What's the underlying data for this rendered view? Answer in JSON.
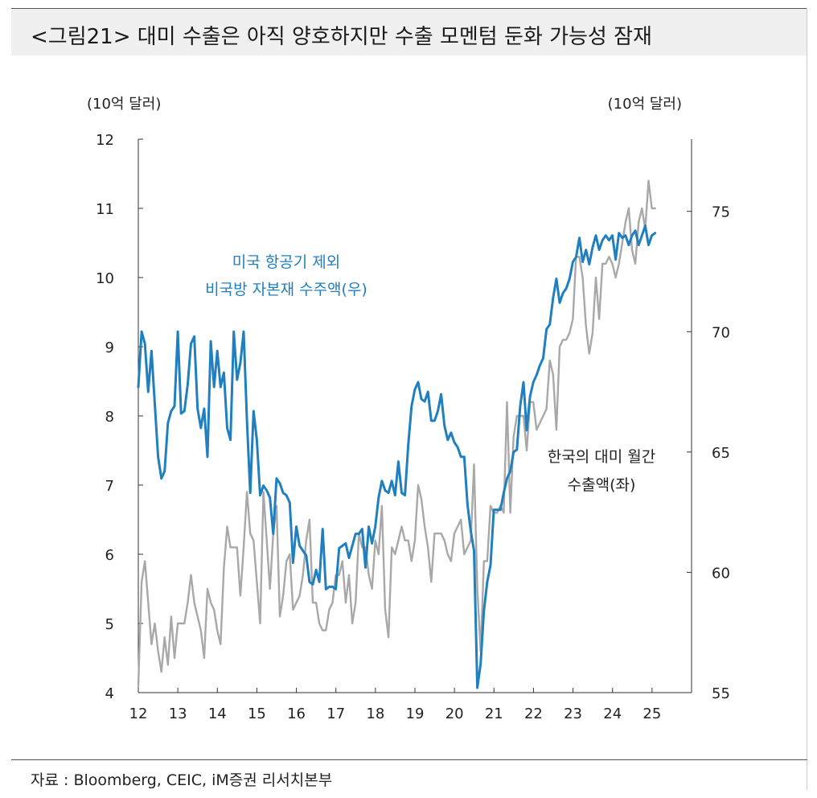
{
  "title": "<그림21> 대미 수출은 아직 양호하지만 수출 모멘텀 둔화 가능성 잠재",
  "source": "자료 : Bloomberg, CEIC, iM증권 리서치본부",
  "colors": {
    "left_series": "#a8a8a8",
    "right_series": "#1f7fbf",
    "axis": "#333333"
  },
  "chart_data": {
    "type": "line",
    "title": "<그림21> 대미 수출은 아직 양호하지만 수출 모멘텀 둔화 가능성 잠재",
    "x_ticks": [
      "12",
      "13",
      "14",
      "15",
      "16",
      "17",
      "18",
      "19",
      "20",
      "21",
      "22",
      "23",
      "24",
      "25"
    ],
    "x_range": [
      2012.0,
      2026.0
    ],
    "y_left": {
      "label": "(10억 달러)",
      "range": [
        4,
        12
      ],
      "ticks": [
        "4",
        "5",
        "6",
        "7",
        "8",
        "9",
        "10",
        "11",
        "12"
      ]
    },
    "y_right": {
      "label": "(10억 달러)",
      "range": [
        55,
        78
      ],
      "ticks": [
        "55",
        "60",
        "65",
        "70",
        "75"
      ]
    },
    "annotations": {
      "blue_line1": "미국 항공기 제외",
      "blue_line2": "비국방 자본재 수주액(우)",
      "gray_line1": "한국의 대미 월간",
      "gray_line2": "수출액(좌)"
    },
    "series": [
      {
        "name": "한국의 대미 월간 수출액(좌)",
        "axis": "left",
        "x_start": 2012.0,
        "x_step": 0.0833,
        "values": [
          4.1,
          5.6,
          5.9,
          5.3,
          4.7,
          5.0,
          4.6,
          4.3,
          4.8,
          4.4,
          5.1,
          4.5,
          5.0,
          5.0,
          5.0,
          5.3,
          5.7,
          5.3,
          5.1,
          4.9,
          4.5,
          5.5,
          5.3,
          5.2,
          4.9,
          4.7,
          5.8,
          6.4,
          6.1,
          6.1,
          6.1,
          5.4,
          6.1,
          6.9,
          6.3,
          6.2,
          5.6,
          5.0,
          6.9,
          6.2,
          5.5,
          6.3,
          6.7,
          5.1,
          5.4,
          5.9,
          6.0,
          5.2,
          5.3,
          5.4,
          5.7,
          6.2,
          6.5,
          5.3,
          5.3,
          5.0,
          4.9,
          4.9,
          5.2,
          5.3,
          5.7,
          5.7,
          5.9,
          5.3,
          5.7,
          5.0,
          5.3,
          6.3,
          6.1,
          6.1,
          5.7,
          5.5,
          6.2,
          6.0,
          6.7,
          5.2,
          4.8,
          6.1,
          6.0,
          6.2,
          6.4,
          6.2,
          6.2,
          5.9,
          6.2,
          7.0,
          6.8,
          6.4,
          6.1,
          5.6,
          6.3,
          6.3,
          6.3,
          6.2,
          6.0,
          5.9,
          6.3,
          6.4,
          6.5,
          6.0,
          6.1,
          6.2,
          7.3,
          5.5,
          4.6,
          5.9,
          5.9,
          6.7,
          6.6,
          6.6,
          6.7,
          6.6,
          8.2,
          6.6,
          7.7,
          8.0,
          8.0,
          8.0,
          7.5,
          8.2,
          8.2,
          7.8,
          7.9,
          8.0,
          8.1,
          8.8,
          8.6,
          7.8,
          9.0,
          9.1,
          9.1,
          9.2,
          9.4,
          10.3,
          10.3,
          10.0,
          9.3,
          8.9,
          9.2,
          10.0,
          9.4,
          10.2,
          10.2,
          10.3,
          10.2,
          10.0,
          10.2,
          10.5,
          10.8,
          11.0,
          10.4,
          10.2,
          10.8,
          11.0,
          10.7,
          11.4,
          11.0,
          11.0
        ]
      },
      {
        "name": "미국 항공기 제외 비국방 자본재 수주액(우)",
        "axis": "right",
        "x_start": 2012.0,
        "x_step": 0.0833,
        "values": [
          67.7,
          70.0,
          69.5,
          67.5,
          69.2,
          67.0,
          64.8,
          63.9,
          64.2,
          66.2,
          66.7,
          66.9,
          70.0,
          66.6,
          66.7,
          67.8,
          69.5,
          69.8,
          66.8,
          66.0,
          66.8,
          64.8,
          69.6,
          67.7,
          69.2,
          67.7,
          68.3,
          66.0,
          65.5,
          70.0,
          68.0,
          68.7,
          70.0,
          66.3,
          63.3,
          66.7,
          65.5,
          63.2,
          63.6,
          63.4,
          63.1,
          61.6,
          63.9,
          63.7,
          63.3,
          63.2,
          62.9,
          60.4,
          61.9,
          61.1,
          60.9,
          60.7,
          59.6,
          59.5,
          60.1,
          59.6,
          61.8,
          59.3,
          59.4,
          59.4,
          59.3,
          61.0,
          61.1,
          61.2,
          60.6,
          61.1,
          61.6,
          61.6,
          61.8,
          60.2,
          61.9,
          61.2,
          61.9,
          63.1,
          63.8,
          63.4,
          63.3,
          63.8,
          63.2,
          64.6,
          63.3,
          63.2,
          65.3,
          66.9,
          67.6,
          67.9,
          67.2,
          67.1,
          67.5,
          66.3,
          66.3,
          66.7,
          67.4,
          66.1,
          65.5,
          65.8,
          65.4,
          65.2,
          64.8,
          64.8,
          62.8,
          61.7,
          60.9,
          55.2,
          56.2,
          58.4,
          59.6,
          60.3,
          62.6,
          62.6,
          62.6,
          63.3,
          63.9,
          64.2,
          65.0,
          65.1,
          66.9,
          67.9,
          65.9,
          67.3,
          67.9,
          68.2,
          68.6,
          68.9,
          70.1,
          70.3,
          71.4,
          72.2,
          71.2,
          71.6,
          71.8,
          72.2,
          72.9,
          73.1,
          73.9,
          72.9,
          73.4,
          72.8,
          73.5,
          74.0,
          73.4,
          73.8,
          74.0,
          73.8,
          74.0,
          73.0,
          74.1,
          73.9,
          74.0,
          73.6,
          74.0,
          74.2,
          73.6,
          74.0,
          74.4,
          73.6,
          74.0,
          74.1
        ]
      }
    ]
  }
}
